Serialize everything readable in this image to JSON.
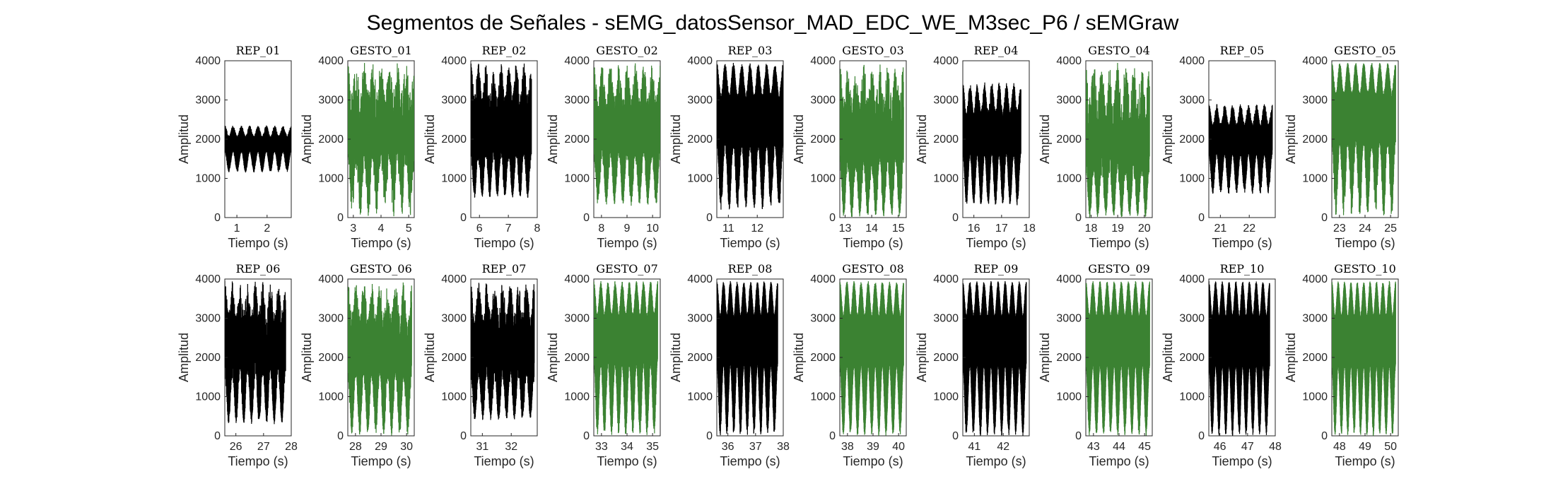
{
  "title": "Segmentos de Señales - sEMG_datosSensor_MAD_EDC_WE_M3sec_P6 / sEMGraw",
  "colors": {
    "rep": "#000000",
    "gesto": "#3b8232"
  },
  "chart_data": [
    {
      "type": "line",
      "title": "REP_01",
      "xlabel": "Tiempo (s)",
      "ylabel": "Amplitud",
      "xlim": [
        0.6,
        2.8
      ],
      "ylim": [
        0,
        4000
      ],
      "xticks": [
        1,
        2
      ],
      "yticks": [
        0,
        1000,
        2000,
        3000,
        4000
      ],
      "series": [
        {
          "kind": "rep",
          "x_range": [
            0.6,
            2.8
          ],
          "cycles": 8,
          "min_range": [
            1150,
            1250
          ],
          "max_range": [
            2250,
            2350
          ],
          "trough_range": [
            1150,
            1250
          ]
        }
      ]
    },
    {
      "type": "line",
      "title": "GESTO_01",
      "xlabel": "Tiempo (s)",
      "ylabel": "Amplitud",
      "xlim": [
        2.8,
        5.2
      ],
      "ylim": [
        0,
        4000
      ],
      "xticks": [
        3,
        4,
        5
      ],
      "yticks": [
        0,
        1000,
        2000,
        3000,
        4000
      ],
      "series": [
        {
          "kind": "gesto",
          "x_range": [
            2.8,
            5.2
          ],
          "cycles": 8,
          "min_range": [
            0,
            1200
          ],
          "max_range": [
            2300,
            4000
          ],
          "trough_range": [
            0,
            1200
          ]
        }
      ]
    },
    {
      "type": "line",
      "title": "REP_02",
      "xlabel": "Tiempo (s)",
      "ylabel": "Amplitud",
      "xlim": [
        5.7,
        8.0
      ],
      "ylim": [
        0,
        4000
      ],
      "xticks": [
        6,
        7,
        8
      ],
      "yticks": [
        0,
        1000,
        2000,
        3000,
        4000
      ],
      "series": [
        {
          "kind": "rep",
          "x_range": [
            5.7,
            7.8
          ],
          "cycles": 8,
          "min_range": [
            0,
            600
          ],
          "max_range": [
            3000,
            3950
          ],
          "trough_range": [
            500,
            650
          ]
        }
      ]
    },
    {
      "type": "line",
      "title": "GESTO_02",
      "xlabel": "Tiempo (s)",
      "ylabel": "Amplitud",
      "xlim": [
        7.7,
        10.3
      ],
      "ylim": [
        0,
        4000
      ],
      "xticks": [
        8,
        9,
        10
      ],
      "yticks": [
        0,
        1000,
        2000,
        3000,
        4000
      ],
      "series": [
        {
          "kind": "gesto",
          "x_range": [
            7.7,
            10.3
          ],
          "cycles": 8,
          "min_range": [
            0,
            600
          ],
          "max_range": [
            3000,
            3950
          ],
          "trough_range": [
            300,
            600
          ]
        }
      ]
    },
    {
      "type": "line",
      "title": "REP_03",
      "xlabel": "Tiempo (s)",
      "ylabel": "Amplitud",
      "xlim": [
        10.6,
        12.9
      ],
      "ylim": [
        0,
        4000
      ],
      "xticks": [
        11,
        12
      ],
      "yticks": [
        0,
        1000,
        2000,
        3000,
        4000
      ],
      "series": [
        {
          "kind": "rep",
          "x_range": [
            10.6,
            12.9
          ],
          "cycles": 8,
          "min_range": [
            0,
            600
          ],
          "max_range": [
            3800,
            3950
          ],
          "trough_range": [
            200,
            600
          ]
        }
      ]
    },
    {
      "type": "line",
      "title": "GESTO_03",
      "xlabel": "Tiempo (s)",
      "ylabel": "Amplitud",
      "xlim": [
        12.8,
        15.3
      ],
      "ylim": [
        0,
        4000
      ],
      "xticks": [
        13,
        14,
        15
      ],
      "yticks": [
        0,
        1000,
        2000,
        3000,
        4000
      ],
      "series": [
        {
          "kind": "gesto",
          "x_range": [
            12.8,
            15.2
          ],
          "cycles": 8,
          "min_range": [
            0,
            300
          ],
          "max_range": [
            2500,
            3950
          ],
          "trough_range": [
            0,
            300
          ]
        }
      ]
    },
    {
      "type": "line",
      "title": "REP_04",
      "xlabel": "Tiempo (s)",
      "ylabel": "Amplitud",
      "xlim": [
        15.6,
        18.0
      ],
      "ylim": [
        0,
        4000
      ],
      "xticks": [
        16,
        17,
        18
      ],
      "yticks": [
        0,
        1000,
        2000,
        3000,
        4000
      ],
      "series": [
        {
          "kind": "rep",
          "x_range": [
            15.6,
            17.7
          ],
          "cycles": 8,
          "min_range": [
            200,
            400
          ],
          "max_range": [
            3100,
            3450
          ],
          "trough_range": [
            300,
            500
          ]
        }
      ]
    },
    {
      "type": "line",
      "title": "GESTO_04",
      "xlabel": "Tiempo (s)",
      "ylabel": "Amplitud",
      "xlim": [
        17.8,
        20.3
      ],
      "ylim": [
        0,
        4000
      ],
      "xticks": [
        18,
        19,
        20
      ],
      "yticks": [
        0,
        1000,
        2000,
        3000,
        4000
      ],
      "series": [
        {
          "kind": "gesto",
          "x_range": [
            17.8,
            20.2
          ],
          "cycles": 8,
          "min_range": [
            0,
            200
          ],
          "max_range": [
            2200,
            3950
          ],
          "trough_range": [
            0,
            200
          ]
        }
      ]
    },
    {
      "type": "line",
      "title": "REP_05",
      "xlabel": "Tiempo (s)",
      "ylabel": "Amplitud",
      "xlim": [
        20.6,
        22.9
      ],
      "ylim": [
        0,
        4000
      ],
      "xticks": [
        21,
        22
      ],
      "yticks": [
        0,
        1000,
        2000,
        3000,
        4000
      ],
      "series": [
        {
          "kind": "rep",
          "x_range": [
            20.6,
            22.8
          ],
          "cycles": 8,
          "min_range": [
            600,
            800
          ],
          "max_range": [
            2700,
            2900
          ],
          "trough_range": [
            600,
            800
          ]
        }
      ]
    },
    {
      "type": "line",
      "title": "GESTO_05",
      "xlabel": "Tiempo (s)",
      "ylabel": "Amplitud",
      "xlim": [
        22.7,
        25.3
      ],
      "ylim": [
        0,
        4000
      ],
      "xticks": [
        23,
        24,
        25
      ],
      "yticks": [
        0,
        1000,
        2000,
        3000,
        4000
      ],
      "series": [
        {
          "kind": "gesto",
          "x_range": [
            22.7,
            25.2
          ],
          "cycles": 8,
          "min_range": [
            0,
            800
          ],
          "max_range": [
            3850,
            3950
          ],
          "trough_range": [
            0,
            800
          ]
        }
      ]
    },
    {
      "type": "line",
      "title": "REP_06",
      "xlabel": "Tiempo (s)",
      "ylabel": "Amplitud",
      "xlim": [
        25.6,
        28.0
      ],
      "ylim": [
        0,
        4000
      ],
      "xticks": [
        26,
        27,
        28
      ],
      "yticks": [
        0,
        1000,
        2000,
        3000,
        4000
      ],
      "series": [
        {
          "kind": "rep",
          "x_range": [
            25.6,
            27.8
          ],
          "cycles": 8,
          "min_range": [
            200,
            800
          ],
          "max_range": [
            2900,
            3950
          ],
          "trough_range": [
            300,
            500
          ]
        }
      ]
    },
    {
      "type": "line",
      "title": "GESTO_06",
      "xlabel": "Tiempo (s)",
      "ylabel": "Amplitud",
      "xlim": [
        27.7,
        30.3
      ],
      "ylim": [
        0,
        4000
      ],
      "xticks": [
        28,
        29,
        30
      ],
      "yticks": [
        0,
        1000,
        2000,
        3000,
        4000
      ],
      "series": [
        {
          "kind": "gesto",
          "x_range": [
            27.7,
            30.2
          ],
          "cycles": 8,
          "min_range": [
            0,
            600
          ],
          "max_range": [
            2800,
            3950
          ],
          "trough_range": [
            0,
            400
          ]
        }
      ]
    },
    {
      "type": "line",
      "title": "REP_07",
      "xlabel": "Tiempo (s)",
      "ylabel": "Amplitud",
      "xlim": [
        30.6,
        32.9
      ],
      "ylim": [
        0,
        4000
      ],
      "xticks": [
        31,
        32
      ],
      "yticks": [
        0,
        1000,
        2000,
        3000,
        4000
      ],
      "series": [
        {
          "kind": "rep",
          "x_range": [
            30.6,
            32.8
          ],
          "cycles": 8,
          "min_range": [
            0,
            500
          ],
          "max_range": [
            2900,
            3950
          ],
          "trough_range": [
            400,
            600
          ]
        }
      ]
    },
    {
      "type": "line",
      "title": "GESTO_07",
      "xlabel": "Tiempo (s)",
      "ylabel": "Amplitud",
      "xlim": [
        32.7,
        35.3
      ],
      "ylim": [
        0,
        4000
      ],
      "xticks": [
        33,
        34,
        35
      ],
      "yticks": [
        0,
        1000,
        2000,
        3000,
        4000
      ],
      "series": [
        {
          "kind": "gesto",
          "x_range": [
            32.7,
            35.2
          ],
          "cycles": 9,
          "min_range": [
            0,
            500
          ],
          "max_range": [
            3800,
            3950
          ],
          "trough_range": [
            0,
            300
          ]
        }
      ]
    },
    {
      "type": "line",
      "title": "REP_08",
      "xlabel": "Tiempo (s)",
      "ylabel": "Amplitud",
      "xlim": [
        35.6,
        38.0
      ],
      "ylim": [
        0,
        4000
      ],
      "xticks": [
        36,
        37,
        38
      ],
      "yticks": [
        0,
        1000,
        2000,
        3000,
        4000
      ],
      "series": [
        {
          "kind": "rep",
          "x_range": [
            35.6,
            37.8
          ],
          "cycles": 9,
          "min_range": [
            0,
            300
          ],
          "max_range": [
            3850,
            3950
          ],
          "trough_range": [
            0,
            300
          ]
        }
      ]
    },
    {
      "type": "line",
      "title": "GESTO_08",
      "xlabel": "Tiempo (s)",
      "ylabel": "Amplitud",
      "xlim": [
        37.7,
        40.3
      ],
      "ylim": [
        0,
        4000
      ],
      "xticks": [
        38,
        39,
        40
      ],
      "yticks": [
        0,
        1000,
        2000,
        3000,
        4000
      ],
      "series": [
        {
          "kind": "gesto",
          "x_range": [
            37.7,
            40.2
          ],
          "cycles": 9,
          "min_range": [
            0,
            200
          ],
          "max_range": [
            3850,
            3950
          ],
          "trough_range": [
            0,
            200
          ]
        }
      ]
    },
    {
      "type": "line",
      "title": "REP_09",
      "xlabel": "Tiempo (s)",
      "ylabel": "Amplitud",
      "xlim": [
        40.6,
        42.9
      ],
      "ylim": [
        0,
        4000
      ],
      "xticks": [
        41,
        42
      ],
      "yticks": [
        0,
        1000,
        2000,
        3000,
        4000
      ],
      "series": [
        {
          "kind": "rep",
          "x_range": [
            40.6,
            42.8
          ],
          "cycles": 9,
          "min_range": [
            0,
            200
          ],
          "max_range": [
            3850,
            3950
          ],
          "trough_range": [
            0,
            200
          ]
        }
      ]
    },
    {
      "type": "line",
      "title": "GESTO_09",
      "xlabel": "Tiempo (s)",
      "ylabel": "Amplitud",
      "xlim": [
        42.7,
        45.3
      ],
      "ylim": [
        0,
        4000
      ],
      "xticks": [
        43,
        44,
        45
      ],
      "yticks": [
        0,
        1000,
        2000,
        3000,
        4000
      ],
      "series": [
        {
          "kind": "gesto",
          "x_range": [
            42.7,
            45.2
          ],
          "cycles": 9,
          "min_range": [
            0,
            200
          ],
          "max_range": [
            3850,
            3950
          ],
          "trough_range": [
            0,
            200
          ]
        }
      ]
    },
    {
      "type": "line",
      "title": "REP_10",
      "xlabel": "Tiempo (s)",
      "ylabel": "Amplitud",
      "xlim": [
        45.6,
        48.0
      ],
      "ylim": [
        0,
        4000
      ],
      "xticks": [
        46,
        47,
        48
      ],
      "yticks": [
        0,
        1000,
        2000,
        3000,
        4000
      ],
      "series": [
        {
          "kind": "rep",
          "x_range": [
            45.6,
            47.8
          ],
          "cycles": 9,
          "min_range": [
            0,
            200
          ],
          "max_range": [
            3850,
            3950
          ],
          "trough_range": [
            0,
            200
          ]
        }
      ]
    },
    {
      "type": "line",
      "title": "GESTO_10",
      "xlabel": "Tiempo (s)",
      "ylabel": "Amplitud",
      "xlim": [
        47.7,
        50.3
      ],
      "ylim": [
        0,
        4000
      ],
      "xticks": [
        48,
        49,
        50
      ],
      "yticks": [
        0,
        1000,
        2000,
        3000,
        4000
      ],
      "series": [
        {
          "kind": "gesto",
          "x_range": [
            47.7,
            50.2
          ],
          "cycles": 10,
          "min_range": [
            0,
            200
          ],
          "max_range": [
            3850,
            3950
          ],
          "trough_range": [
            0,
            200
          ]
        }
      ]
    }
  ]
}
